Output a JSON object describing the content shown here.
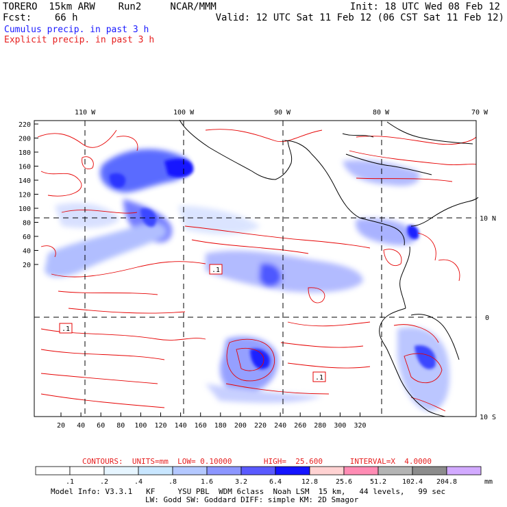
{
  "header": {
    "line1_left": "TORERO  15km ARW    Run2     NCAR/MMM",
    "line1_right": "Init: 18 UTC Wed 08 Feb 12",
    "line2_left": "Fcst:    66 h",
    "line2_right": "Valid: 12 UTC Sat 11 Feb 12 (06 CST Sat 11 Feb 12)",
    "field1": "Cumulus precip. in past 3 h",
    "field2": "Explicit precip. in past 3 h"
  },
  "map": {
    "top_lon_labels": [
      "110 W",
      "100 W",
      "90 W",
      "80 W",
      "70 W"
    ],
    "right_lat_labels": [
      "10 N",
      "0",
      "10 S"
    ],
    "y_ticks": [
      "220",
      "200",
      "180",
      "160",
      "140",
      "120",
      "100",
      "80",
      "60",
      "40",
      "20"
    ],
    "x_ticks": [
      "20",
      "40",
      "60",
      "80",
      "100",
      "120",
      "140",
      "160",
      "180",
      "200",
      "220",
      "240",
      "260",
      "280",
      "300",
      "320"
    ],
    "box_labels": [
      ".1",
      ".1",
      ".1"
    ],
    "colors": {
      "contour": "#e60000",
      "coast": "#000000",
      "grid": "#000000"
    }
  },
  "legend": {
    "contours_text": "CONTOURS:  UNITS=mm  LOW= 0.10000       HIGH=  25.600      INTERVAL=X  4.0000",
    "unit": "mm",
    "labels": [
      ".1",
      ".2",
      ".4",
      ".8",
      "1.6",
      "3.2",
      "6.4",
      "12.8",
      "25.6",
      "51.2",
      "102.4",
      "204.8"
    ],
    "colors": [
      "#ffffff",
      "#ffffff",
      "#e6f5ff",
      "#c8e6ff",
      "#b4c8ff",
      "#8c96ff",
      "#5a5aff",
      "#1414ff",
      "#ffd2d2",
      "#ff8cb4",
      "#b4b4b4",
      "#8c8c8c",
      "#d2aaff"
    ]
  },
  "model_info": {
    "line1": "Model Info: V3.3.1   KF     YSU PBL  WDM 6class  Noah LSM  15 km,   44 levels,   99 sec",
    "line2": "LW: Godd SW: Goddard DIFF: simple KM: 2D Smagor"
  }
}
